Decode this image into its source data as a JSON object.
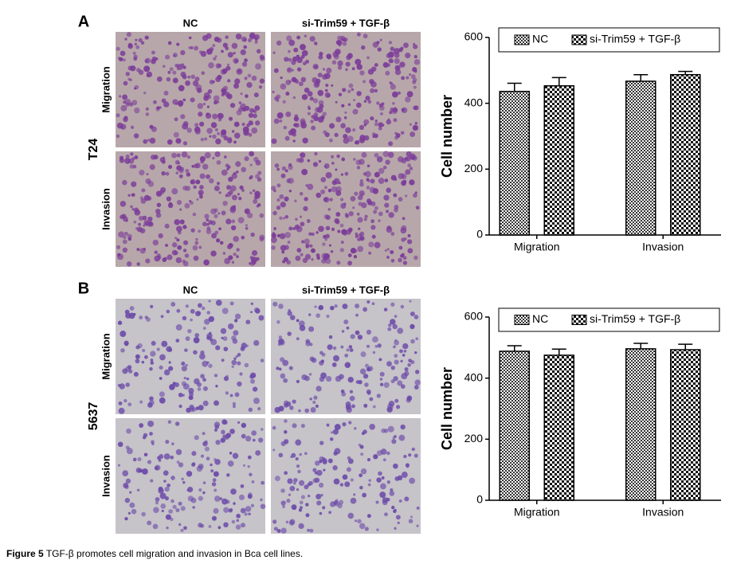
{
  "panels": [
    {
      "label": "A",
      "cell_line": "T24",
      "columns": [
        "NC",
        "si-Trim59 + TGF-β"
      ],
      "rows": [
        "Migration",
        "Invasion"
      ]
    },
    {
      "label": "B",
      "cell_line": "5637",
      "columns": [
        "NC",
        "si-Trim59 + TGF-β"
      ],
      "rows": [
        "Migration",
        "Invasion"
      ]
    }
  ],
  "chart_data": [
    {
      "type": "bar",
      "ylabel": "Cell number",
      "categories": [
        "Migration",
        "Invasion"
      ],
      "series": [
        {
          "name": "NC",
          "values": [
            436,
            467
          ],
          "errors": [
            25,
            20
          ]
        },
        {
          "name": "si-Trim59 + TGF-β",
          "values": [
            453,
            487
          ],
          "errors": [
            25,
            10
          ]
        }
      ],
      "ylim": [
        0,
        600
      ],
      "yticks": [
        0,
        200,
        400,
        600
      ],
      "legend": "top"
    },
    {
      "type": "bar",
      "ylabel": "Cell number",
      "categories": [
        "Migration",
        "Invasion"
      ],
      "series": [
        {
          "name": "NC",
          "values": [
            488,
            496
          ],
          "errors": [
            18,
            18
          ]
        },
        {
          "name": "si-Trim59 + TGF-β",
          "values": [
            475,
            493
          ],
          "errors": [
            20,
            18
          ]
        }
      ],
      "ylim": [
        0,
        600
      ],
      "yticks": [
        0,
        200,
        400,
        600
      ],
      "legend": "top"
    }
  ],
  "caption": {
    "label": "Figure 5",
    "text": "TGF-β promotes cell migration and invasion in Bca cell lines."
  }
}
